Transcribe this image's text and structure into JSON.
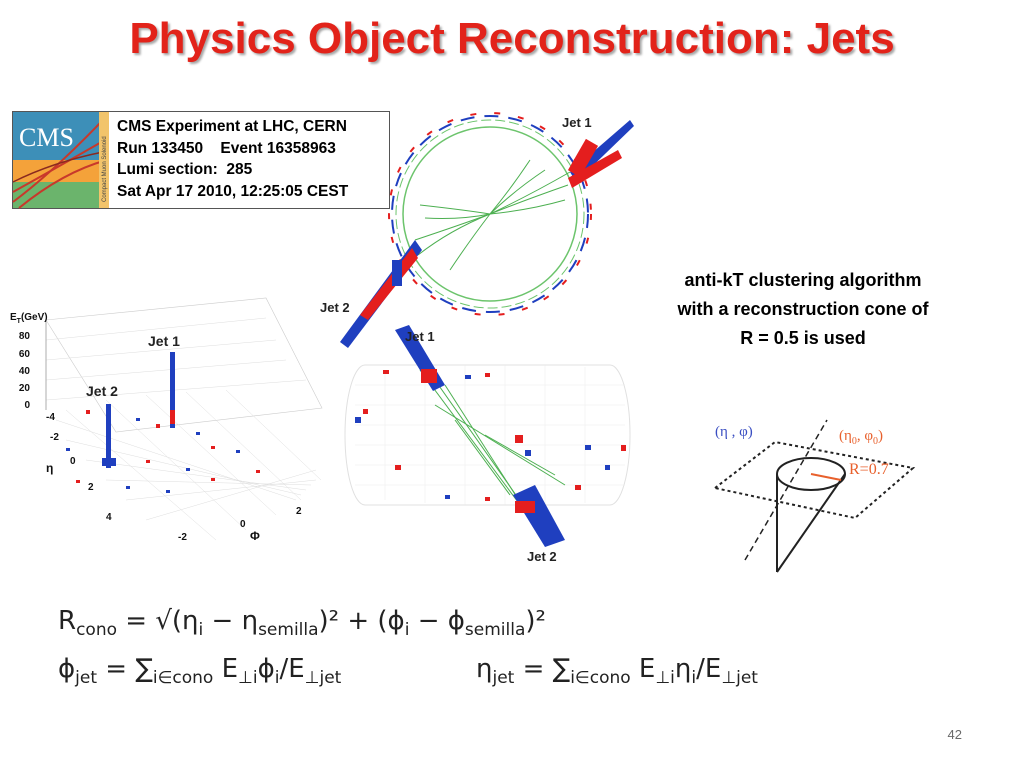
{
  "slide": {
    "title": "Physics Object Reconstruction: Jets",
    "page_number": "42"
  },
  "cms_event": {
    "logo_text": "CMS",
    "logo_subtext": "Compact Muon Solenoid",
    "line1": "CMS Experiment at LHC, CERN",
    "line2": "Run 133450    Event 16358963",
    "line3": "Lumi section:  285",
    "line4": "Sat Apr 17 2010, 12:25:05 CEST"
  },
  "transverse_view": {
    "jet1_label": "Jet 1",
    "jet2_label": "Jet 2"
  },
  "lego_plot": {
    "y_axis_label": "E",
    "y_axis_sub": "T",
    "y_axis_unit": "(GeV)",
    "y_ticks": [
      "80",
      "60",
      "40",
      "20",
      "0"
    ],
    "eta_label": "η",
    "eta_ticks": [
      "-4",
      "-2",
      "0",
      "2",
      "4"
    ],
    "phi_label": "Φ",
    "phi_ticks": [
      "-2",
      "0",
      "2"
    ],
    "jet1_label": "Jet 1",
    "jet2_label": "Jet 2"
  },
  "longitudinal_view": {
    "jet1_label": "Jet 1",
    "jet2_label": "Jet 2"
  },
  "algorithm_text": {
    "line1": "anti-kT clustering algorithm",
    "line2": "with a reconstruction cone of",
    "line3": "R = 0.5 is used"
  },
  "cone_diagram": {
    "point_label": "(η , φ)",
    "center_label": "(η",
    "center_sub0": "0",
    "center_mid": ", φ",
    "center_sub1": "0",
    "center_close": ")",
    "radius_label": "R=0.7"
  },
  "equations": {
    "r_lhs": "R",
    "r_lhs_sub": "cono",
    "r_rhs": "= √(η",
    "r_eta_i": "i",
    "r_minus1": " − η",
    "r_semilla1": "semilla",
    "r_mid": ")² + (ϕ",
    "r_phi_i": "i",
    "r_minus2": " − ϕ",
    "r_semilla2": "semilla",
    "r_end": ")²",
    "phi_lhs": "ϕ",
    "phi_lhs_sub": "jet",
    "phi_rhs": "= ∑",
    "phi_sum_sub": "i∈cono",
    "phi_body": " E",
    "phi_body_sub": "⊥i",
    "phi_body2": "ϕ",
    "phi_body2_sub": "i",
    "phi_div": "/E",
    "phi_div_sub": "⊥jet",
    "eta_lhs": "η",
    "eta_lhs_sub": "jet",
    "eta_rhs": "= ∑",
    "eta_sum_sub": "i∈cono",
    "eta_body": " E",
    "eta_body_sub": "⊥i",
    "eta_body2": "η",
    "eta_body2_sub": "i",
    "eta_div": "/E",
    "eta_div_sub": "⊥jet"
  },
  "colors": {
    "title": "#e2231a",
    "jet_red": "#e41e1e",
    "jet_blue": "#1f3fbf",
    "track_green": "#4caf50",
    "cone_orange": "#e8602c",
    "cone_label_blue": "#3a4ec2"
  }
}
